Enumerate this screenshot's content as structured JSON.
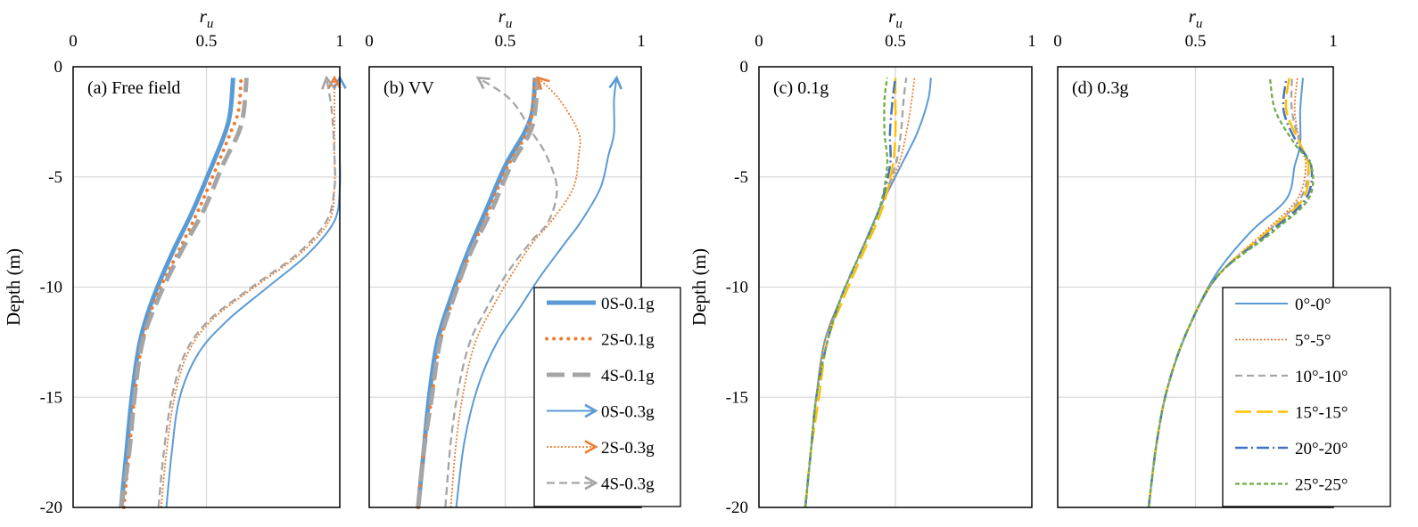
{
  "chart_data": [
    {
      "type": "line",
      "panel": "a",
      "panel_label": "(a) Free field",
      "xlabel_italic": "r",
      "xlabel_sub": "u",
      "ylabel": "Depth (m)",
      "xlim": [
        0,
        1
      ],
      "ylim": [
        -20,
        0
      ],
      "xticks": [
        "0",
        "0.5",
        "1"
      ],
      "yticks": [
        "0",
        "-5",
        "-10",
        "-15",
        "-20"
      ],
      "grid": true,
      "series": [
        {
          "name": "0S-0.1g",
          "x": [
            0.6,
            0.59,
            0.57,
            0.52,
            0.45,
            0.37,
            0.3,
            0.25,
            0.22,
            0.2,
            0.18
          ],
          "y": [
            -0.5,
            -2,
            -3,
            -4.5,
            -6.5,
            -8.5,
            -10.5,
            -12.5,
            -15,
            -17.5,
            -20
          ]
        },
        {
          "name": "2S-0.1g",
          "x": [
            0.63,
            0.62,
            0.59,
            0.54,
            0.47,
            0.39,
            0.31,
            0.26,
            0.23,
            0.21,
            0.19
          ],
          "y": [
            -0.5,
            -2,
            -3,
            -4.5,
            -6.5,
            -8.5,
            -10.5,
            -12.5,
            -15,
            -17.5,
            -20
          ]
        },
        {
          "name": "4S-0.1g",
          "x": [
            0.65,
            0.64,
            0.62,
            0.56,
            0.49,
            0.4,
            0.32,
            0.26,
            0.23,
            0.21,
            0.18
          ],
          "y": [
            -0.5,
            -2,
            -3,
            -4.5,
            -6.5,
            -8.5,
            -10.5,
            -12.5,
            -15,
            -17.5,
            -20
          ]
        },
        {
          "name": "0S-0.3g",
          "x": [
            1.0,
            1.0,
            1.0,
            1.0,
            0.98,
            0.88,
            0.73,
            0.58,
            0.47,
            0.4,
            0.37,
            0.35
          ],
          "y": [
            -0.5,
            -2,
            -4,
            -5.5,
            -7,
            -8.5,
            -10,
            -11.5,
            -13,
            -15,
            -17.5,
            -20
          ]
        },
        {
          "name": "2S-0.3g",
          "x": [
            0.98,
            0.98,
            0.98,
            0.98,
            0.96,
            0.85,
            0.68,
            0.52,
            0.43,
            0.38,
            0.35,
            0.33
          ],
          "y": [
            -0.5,
            -2,
            -4,
            -5.5,
            -7,
            -8.5,
            -10,
            -11.5,
            -13,
            -15,
            -17.5,
            -20
          ]
        },
        {
          "name": "4S-0.3g",
          "x": [
            0.95,
            0.97,
            0.98,
            0.98,
            0.95,
            0.84,
            0.67,
            0.51,
            0.42,
            0.37,
            0.34,
            0.32
          ],
          "y": [
            -0.5,
            -2,
            -4,
            -5.5,
            -7,
            -8.5,
            -10,
            -11.5,
            -13,
            -15,
            -17.5,
            -20
          ]
        }
      ]
    },
    {
      "type": "line",
      "panel": "b",
      "panel_label": "(b) VV",
      "xlabel_italic": "r",
      "xlabel_sub": "u",
      "xlim": [
        0,
        1
      ],
      "ylim": [
        -20,
        0
      ],
      "xticks": [
        "0",
        "0.5",
        "1"
      ],
      "grid": true,
      "series": [
        {
          "name": "0S-0.1g",
          "x": [
            0.61,
            0.6,
            0.57,
            0.5,
            0.43,
            0.36,
            0.3,
            0.25,
            0.22,
            0.2,
            0.18
          ],
          "y": [
            -0.5,
            -2,
            -3,
            -4.5,
            -6.5,
            -8.5,
            -10.5,
            -12.5,
            -15,
            -17.5,
            -20
          ]
        },
        {
          "name": "2S-0.1g",
          "x": [
            0.61,
            0.6,
            0.58,
            0.51,
            0.44,
            0.37,
            0.31,
            0.26,
            0.23,
            0.2,
            0.18
          ],
          "y": [
            -0.5,
            -2,
            -3,
            -4.5,
            -6.5,
            -8.5,
            -10.5,
            -12.5,
            -15,
            -17.5,
            -20
          ]
        },
        {
          "name": "4S-0.1g",
          "x": [
            0.62,
            0.61,
            0.59,
            0.52,
            0.45,
            0.37,
            0.31,
            0.26,
            0.23,
            0.2,
            0.18
          ],
          "y": [
            -0.5,
            -2,
            -3,
            -4.5,
            -6.5,
            -8.5,
            -10.5,
            -12.5,
            -15,
            -17.5,
            -20
          ]
        },
        {
          "name": "0S-0.3g",
          "x": [
            0.91,
            0.9,
            0.9,
            0.88,
            0.85,
            0.78,
            0.72,
            0.63,
            0.55,
            0.47,
            0.4,
            0.35,
            0.32
          ],
          "y": [
            -0.5,
            -1.5,
            -3,
            -4,
            -5.5,
            -7,
            -8,
            -9.5,
            -11,
            -12.5,
            -14.5,
            -17,
            -20
          ]
        },
        {
          "name": "2S-0.3g",
          "x": [
            0.62,
            0.7,
            0.77,
            0.77,
            0.75,
            0.67,
            0.6,
            0.52,
            0.45,
            0.39,
            0.35,
            0.32,
            0.3
          ],
          "y": [
            -0.5,
            -1.5,
            -3,
            -4,
            -5.5,
            -7,
            -8,
            -9.5,
            -11,
            -12.5,
            -14.5,
            -17,
            -20
          ]
        },
        {
          "name": "4S-0.3g",
          "x": [
            0.4,
            0.52,
            0.6,
            0.65,
            0.69,
            0.66,
            0.59,
            0.5,
            0.43,
            0.37,
            0.33,
            0.3,
            0.28
          ],
          "y": [
            -0.5,
            -1.5,
            -3,
            -4,
            -5.5,
            -7,
            -8,
            -9.5,
            -11,
            -12.5,
            -14.5,
            -17,
            -20
          ]
        }
      ],
      "legend": [
        "0S-0.1g",
        "2S-0.1g",
        "4S-0.1g",
        "0S-0.3g",
        "2S-0.3g",
        "4S-0.3g"
      ]
    },
    {
      "type": "line",
      "panel": "c",
      "panel_label": "(c) 0.1g",
      "xlabel_italic": "r",
      "xlabel_sub": "u",
      "ylabel": "Depth (m)",
      "xlim": [
        0,
        1
      ],
      "ylim": [
        -20,
        0
      ],
      "xticks": [
        "0",
        "0.5",
        "1"
      ],
      "yticks": [
        "0",
        "-5",
        "-10",
        "-15",
        "-20"
      ],
      "grid": true,
      "series": [
        {
          "name": "0°-0°",
          "x": [
            0.63,
            0.62,
            0.58,
            0.52,
            0.44,
            0.37,
            0.3,
            0.24,
            0.21,
            0.19,
            0.17
          ],
          "y": [
            -0.5,
            -1.5,
            -3,
            -4.5,
            -6.5,
            -8.5,
            -10.5,
            -12.5,
            -15,
            -17.5,
            -20
          ]
        },
        {
          "name": "5°-5°",
          "x": [
            0.57,
            0.56,
            0.54,
            0.51,
            0.44,
            0.37,
            0.3,
            0.24,
            0.21,
            0.19,
            0.17
          ],
          "y": [
            -0.5,
            -1.5,
            -3,
            -4.5,
            -6.5,
            -8.5,
            -10.5,
            -12.5,
            -15,
            -17.5,
            -20
          ]
        },
        {
          "name": "10°-10°",
          "x": [
            0.54,
            0.53,
            0.52,
            0.5,
            0.44,
            0.37,
            0.3,
            0.25,
            0.21,
            0.19,
            0.17
          ],
          "y": [
            -0.5,
            -1.5,
            -3,
            -4.5,
            -6.5,
            -8.5,
            -10.5,
            -12.5,
            -15,
            -17.5,
            -20
          ]
        },
        {
          "name": "15°-15°",
          "x": [
            0.5,
            0.5,
            0.5,
            0.49,
            0.45,
            0.38,
            0.31,
            0.25,
            0.22,
            0.19,
            0.17
          ],
          "y": [
            -0.5,
            -1.5,
            -3,
            -4.5,
            -6.5,
            -8.5,
            -10.5,
            -12.5,
            -15,
            -17.5,
            -20
          ]
        },
        {
          "name": "20°-20°",
          "x": [
            0.5,
            0.49,
            0.48,
            0.48,
            0.44,
            0.37,
            0.3,
            0.25,
            0.21,
            0.19,
            0.17
          ],
          "y": [
            -0.5,
            -1.5,
            -3,
            -4.5,
            -6.5,
            -8.5,
            -10.5,
            -12.5,
            -15,
            -17.5,
            -20
          ]
        },
        {
          "name": "25°-25°",
          "x": [
            0.47,
            0.46,
            0.46,
            0.47,
            0.44,
            0.37,
            0.3,
            0.25,
            0.21,
            0.19,
            0.17
          ],
          "y": [
            -0.5,
            -1.5,
            -3,
            -4.5,
            -6.5,
            -8.5,
            -10.5,
            -12.5,
            -15,
            -17.5,
            -20
          ]
        }
      ]
    },
    {
      "type": "line",
      "panel": "d",
      "panel_label": "(d) 0.3g",
      "xlabel_italic": "r",
      "xlabel_sub": "u",
      "xlim": [
        0,
        1
      ],
      "ylim": [
        -20,
        0
      ],
      "xticks": [
        "0",
        "0.5",
        "1"
      ],
      "grid": true,
      "series": [
        {
          "name": "0°-0°",
          "x": [
            0.89,
            0.88,
            0.88,
            0.86,
            0.83,
            0.7,
            0.57,
            0.47,
            0.4,
            0.36,
            0.33
          ],
          "y": [
            -0.5,
            -2,
            -3.5,
            -4.5,
            -6,
            -7.5,
            -9.5,
            -12,
            -14.5,
            -17,
            -20
          ]
        },
        {
          "name": "5°-5°",
          "x": [
            0.87,
            0.86,
            0.88,
            0.9,
            0.87,
            0.75,
            0.58,
            0.47,
            0.4,
            0.36,
            0.33
          ],
          "y": [
            -0.5,
            -2,
            -3.5,
            -4.5,
            -6,
            -7.5,
            -9.5,
            -12,
            -14.5,
            -17,
            -20
          ]
        },
        {
          "name": "10°-10°",
          "x": [
            0.85,
            0.85,
            0.88,
            0.91,
            0.88,
            0.76,
            0.58,
            0.47,
            0.4,
            0.36,
            0.33
          ],
          "y": [
            -0.5,
            -2,
            -3.5,
            -4.5,
            -6,
            -7.5,
            -9.5,
            -12,
            -14.5,
            -17,
            -20
          ]
        },
        {
          "name": "15°-15°",
          "x": [
            0.84,
            0.83,
            0.88,
            0.91,
            0.89,
            0.76,
            0.58,
            0.47,
            0.4,
            0.36,
            0.33
          ],
          "y": [
            -0.5,
            -2,
            -3.5,
            -4.5,
            -6,
            -7.5,
            -9.5,
            -12,
            -14.5,
            -17,
            -20
          ]
        },
        {
          "name": "20°-20°",
          "x": [
            0.83,
            0.82,
            0.87,
            0.92,
            0.9,
            0.77,
            0.58,
            0.47,
            0.4,
            0.36,
            0.33
          ],
          "y": [
            -0.5,
            -2,
            -3.5,
            -4.5,
            -6,
            -7.5,
            -9.5,
            -12,
            -14.5,
            -17,
            -20
          ]
        },
        {
          "name": "25°-25°",
          "x": [
            0.77,
            0.79,
            0.86,
            0.92,
            0.91,
            0.78,
            0.58,
            0.47,
            0.4,
            0.36,
            0.33
          ],
          "y": [
            -0.5,
            -2,
            -3.5,
            -4.5,
            -6,
            -7.5,
            -9.5,
            -12,
            -14.5,
            -17,
            -20
          ]
        }
      ],
      "legend": [
        "0°-0°",
        "5°-5°",
        "10°-10°",
        "15°-15°",
        "20°-20°",
        "25°-25°"
      ]
    }
  ],
  "colors": {
    "blue": "#5b9bd5",
    "orange": "#ed7d31",
    "gray": "#a5a5a5",
    "yellow": "#ffc000",
    "darkblue": "#4472c4",
    "green": "#70ad47",
    "grid": "#d9d9d9"
  }
}
